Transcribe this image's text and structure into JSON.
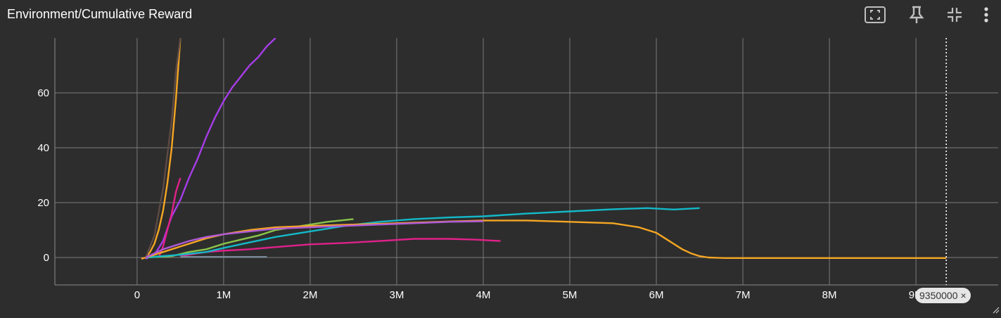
{
  "header": {
    "title": "Environment/Cumulative Reward",
    "buttons": [
      {
        "name": "fit-domain-icon"
      },
      {
        "name": "pin-icon"
      },
      {
        "name": "collapse-icon"
      },
      {
        "name": "more-vert-icon"
      }
    ]
  },
  "step_chip": {
    "label": "9350000",
    "close": "×"
  },
  "chart_data": {
    "type": "line",
    "title": "Environment/Cumulative Reward",
    "xlabel": "",
    "ylabel": "",
    "xlim": [
      -0.95,
      9.95
    ],
    "ylim": [
      -10,
      80
    ],
    "x_ticks": [
      0,
      1,
      2,
      3,
      4,
      5,
      6,
      7,
      8,
      9
    ],
    "x_tick_labels": [
      "0",
      "1M",
      "2M",
      "3M",
      "4M",
      "5M",
      "6M",
      "7M",
      "8M",
      "9M"
    ],
    "y_ticks": [
      0,
      20,
      40,
      60
    ],
    "y_tick_labels": [
      "0",
      "20",
      "40",
      "60"
    ],
    "grid": true,
    "cursor_step": 9.35,
    "series": [
      {
        "color": "#f5a623",
        "x": [
          0.05,
          0.1,
          0.15,
          0.2,
          0.25,
          0.3,
          0.35,
          0.4,
          0.45,
          0.5
        ],
        "y": [
          -0.5,
          0,
          2,
          5,
          10,
          17,
          27,
          40,
          58,
          80
        ]
      },
      {
        "color": "#a63de8",
        "x": [
          0.1,
          0.2,
          0.3,
          0.4,
          0.5,
          0.6,
          0.7,
          0.8,
          0.9,
          1.0,
          1.1,
          1.2,
          1.3,
          1.4,
          1.5,
          1.6
        ],
        "y": [
          -0.5,
          1,
          6,
          15,
          21,
          29,
          36,
          44,
          51,
          57,
          62,
          66,
          70,
          73,
          77,
          80
        ]
      },
      {
        "color": "#5d4a45",
        "x": [
          0.1,
          0.2,
          0.3,
          0.4,
          0.45,
          0.5
        ],
        "y": [
          0,
          8,
          25,
          50,
          68,
          80
        ]
      },
      {
        "color": "#e0218a",
        "x": [
          0.25,
          0.3,
          0.35,
          0.4,
          0.45,
          0.5
        ],
        "y": [
          0,
          4,
          10,
          16,
          24,
          29
        ]
      },
      {
        "color": "#e0218a",
        "x": [
          0.5,
          0.8,
          1.0,
          1.3,
          1.6,
          2.0,
          2.4,
          2.8,
          3.2,
          3.6,
          3.9,
          4.2
        ],
        "y": [
          0.5,
          2,
          2.5,
          3,
          3.8,
          4.8,
          5.3,
          6,
          6.8,
          6.8,
          6.5,
          6
        ]
      },
      {
        "color": "#8ac44a",
        "x": [
          0.1,
          0.4,
          0.6,
          0.8,
          1.0,
          1.2,
          1.4,
          1.6,
          1.8,
          2.0,
          2.2,
          2.5
        ],
        "y": [
          0,
          0.5,
          2,
          3,
          5,
          6.5,
          8,
          10,
          11,
          12,
          13,
          14
        ]
      },
      {
        "color": "#13b9c8",
        "x": [
          0.1,
          0.5,
          0.8,
          1.0,
          1.3,
          1.6,
          2.0,
          2.4,
          2.8,
          3.2,
          3.6,
          4.0,
          4.5,
          5.0,
          5.5,
          5.9,
          6.2,
          6.5
        ],
        "y": [
          0,
          1,
          2,
          3.5,
          5.5,
          7.5,
          9.5,
          11.5,
          13,
          14,
          14.6,
          15,
          16,
          16.8,
          17.6,
          18,
          17.5,
          18
        ]
      },
      {
        "color": "#f5a623",
        "x": [
          0.1,
          0.3,
          0.6,
          0.8,
          1.0,
          1.3,
          1.6,
          2.0,
          2.5,
          3.0,
          3.5,
          4.0,
          4.5,
          5.0,
          5.5,
          5.8,
          6.0,
          6.1,
          6.2,
          6.3,
          6.4,
          6.5,
          6.6,
          6.8,
          7.0,
          8.0,
          9.0,
          9.35
        ],
        "y": [
          0,
          2,
          5,
          7,
          8.5,
          10,
          11,
          11.5,
          12,
          12.5,
          13,
          13.5,
          13.5,
          13,
          12.5,
          11,
          9,
          7,
          5,
          3,
          1.5,
          0.5,
          0,
          -0.2,
          -0.2,
          -0.2,
          -0.2,
          -0.2
        ]
      },
      {
        "color": "#b05ad8",
        "x": [
          0.1,
          0.3,
          0.6,
          0.8,
          1.0,
          1.3,
          1.6,
          2.0,
          2.4,
          2.8,
          3.2,
          3.6,
          4.0
        ],
        "y": [
          0,
          3,
          6,
          7.5,
          8.5,
          9.5,
          10.5,
          11,
          11.5,
          12,
          12.5,
          13,
          13.2
        ]
      },
      {
        "color": "#7a8a99",
        "x": [
          0.5,
          1.0,
          1.5
        ],
        "y": [
          0.2,
          0.2,
          0.2
        ]
      }
    ]
  }
}
